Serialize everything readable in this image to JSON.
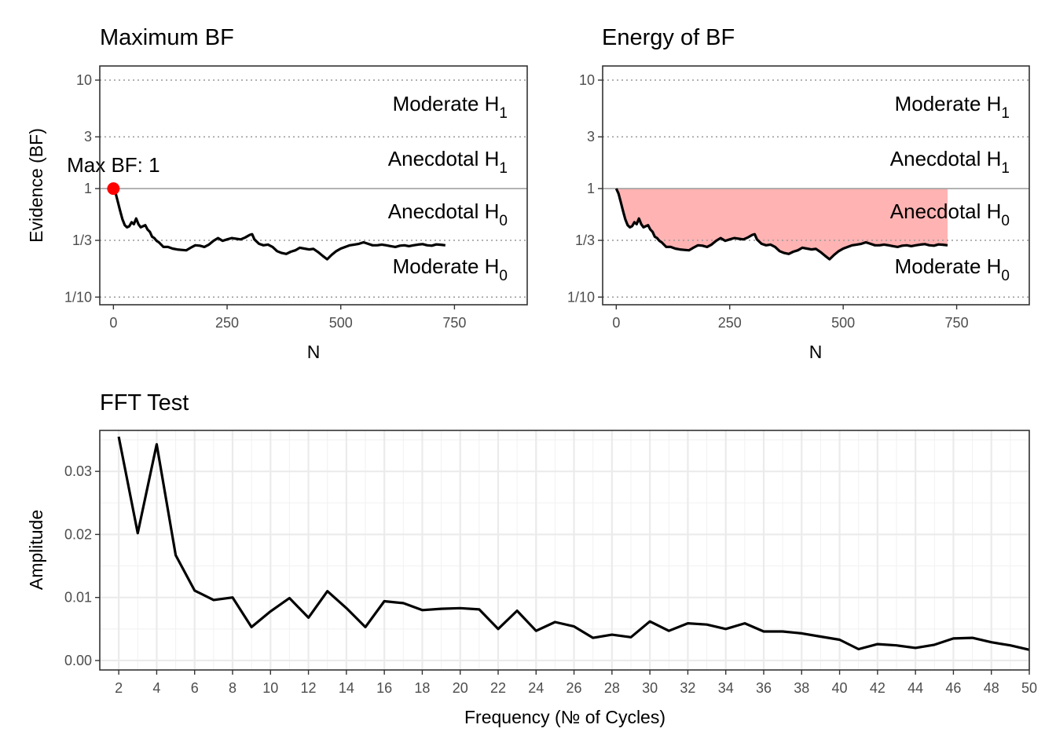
{
  "colors": {
    "line": "#000000",
    "max_point": "#ff0000",
    "energy_fill": "#ffb3b3",
    "reference_line": "#999999",
    "frame": "#333333"
  },
  "chart_data": [
    {
      "type": "line",
      "title": "Maximum BF",
      "xlabel": "N",
      "ylabel": "Evidence (BF)",
      "y_scale": "log",
      "xlim": [
        -30,
        910
      ],
      "ylim": [
        0.085,
        13.5
      ],
      "x_ticks": [
        0,
        250,
        500,
        750
      ],
      "x_tick_labels": [
        "0",
        "250",
        "500",
        "750"
      ],
      "y_ticks": [
        0.1,
        0.3333,
        1,
        3,
        10
      ],
      "y_tick_labels": [
        "1/10",
        "1/3",
        "1",
        "3",
        "10"
      ],
      "grid": "dotted at 1/10, 1/3, 3, 10; solid reference at 1",
      "evidence_zones": [
        "Moderate H₁",
        "Anecdotal H₁",
        "Anecdotal H₀",
        "Moderate H₀"
      ],
      "annotation": {
        "label": "Max BF: 1",
        "x": 0,
        "y": 1
      },
      "series": [
        {
          "x": [
            0,
            5,
            10,
            15,
            20,
            25,
            30,
            35,
            40,
            45,
            50,
            55,
            60,
            65,
            70,
            75,
            80,
            85,
            90,
            95,
            100,
            110,
            120,
            130,
            140,
            150,
            160,
            170,
            180,
            190,
            200,
            210,
            220,
            230,
            240,
            250,
            260,
            270,
            280,
            290,
            300,
            305,
            310,
            320,
            330,
            340,
            350,
            360,
            370,
            380,
            390,
            400,
            410,
            420,
            430,
            440,
            450,
            460,
            470,
            480,
            490,
            500,
            510,
            520,
            530,
            540,
            550,
            560,
            570,
            580,
            590,
            600,
            610,
            620,
            630,
            640,
            650,
            660,
            670,
            680,
            690,
            700,
            710,
            720,
            730
          ],
          "y": [
            1.0,
            0.9,
            0.75,
            0.62,
            0.52,
            0.46,
            0.44,
            0.45,
            0.49,
            0.47,
            0.53,
            0.47,
            0.44,
            0.45,
            0.46,
            0.42,
            0.4,
            0.36,
            0.35,
            0.33,
            0.32,
            0.29,
            0.29,
            0.28,
            0.275,
            0.272,
            0.27,
            0.285,
            0.3,
            0.298,
            0.29,
            0.305,
            0.33,
            0.35,
            0.33,
            0.34,
            0.35,
            0.345,
            0.34,
            0.355,
            0.375,
            0.38,
            0.34,
            0.31,
            0.3,
            0.305,
            0.29,
            0.265,
            0.255,
            0.25,
            0.262,
            0.27,
            0.285,
            0.28,
            0.275,
            0.278,
            0.26,
            0.24,
            0.223,
            0.245,
            0.265,
            0.28,
            0.29,
            0.3,
            0.305,
            0.31,
            0.32,
            0.31,
            0.3,
            0.3,
            0.305,
            0.3,
            0.295,
            0.29,
            0.298,
            0.3,
            0.295,
            0.3,
            0.305,
            0.308,
            0.3,
            0.298,
            0.306,
            0.304,
            0.3
          ]
        }
      ]
    },
    {
      "type": "area",
      "title": "Energy of BF",
      "xlabel": "N",
      "ylabel": "",
      "y_scale": "log",
      "xlim": [
        -30,
        910
      ],
      "ylim": [
        0.085,
        13.5
      ],
      "x_ticks": [
        0,
        250,
        500,
        750
      ],
      "x_tick_labels": [
        "0",
        "250",
        "500",
        "750"
      ],
      "y_ticks": [
        0.1,
        0.3333,
        1,
        3,
        10
      ],
      "y_tick_labels": [
        "1/10",
        "1/3",
        "1",
        "3",
        "10"
      ],
      "grid": "dotted at 1/10, 1/3, 3, 10; solid reference at 1",
      "shaded_region": "between BF = 1 and the BF curve",
      "evidence_zones": [
        "Moderate H₁",
        "Anecdotal H₁",
        "Anecdotal H₀",
        "Moderate H₀"
      ],
      "series": [
        {
          "x": [
            0,
            5,
            10,
            15,
            20,
            25,
            30,
            35,
            40,
            45,
            50,
            55,
            60,
            65,
            70,
            75,
            80,
            85,
            90,
            95,
            100,
            110,
            120,
            130,
            140,
            150,
            160,
            170,
            180,
            190,
            200,
            210,
            220,
            230,
            240,
            250,
            260,
            270,
            280,
            290,
            300,
            305,
            310,
            320,
            330,
            340,
            350,
            360,
            370,
            380,
            390,
            400,
            410,
            420,
            430,
            440,
            450,
            460,
            470,
            480,
            490,
            500,
            510,
            520,
            530,
            540,
            550,
            560,
            570,
            580,
            590,
            600,
            610,
            620,
            630,
            640,
            650,
            660,
            670,
            680,
            690,
            700,
            710,
            720,
            730
          ],
          "y": [
            1.0,
            0.9,
            0.75,
            0.62,
            0.52,
            0.46,
            0.44,
            0.45,
            0.49,
            0.47,
            0.53,
            0.47,
            0.44,
            0.45,
            0.46,
            0.42,
            0.4,
            0.36,
            0.35,
            0.33,
            0.32,
            0.29,
            0.29,
            0.28,
            0.275,
            0.272,
            0.27,
            0.285,
            0.3,
            0.298,
            0.29,
            0.305,
            0.33,
            0.35,
            0.33,
            0.34,
            0.35,
            0.345,
            0.34,
            0.355,
            0.375,
            0.38,
            0.34,
            0.31,
            0.3,
            0.305,
            0.29,
            0.265,
            0.255,
            0.25,
            0.262,
            0.27,
            0.285,
            0.28,
            0.275,
            0.278,
            0.26,
            0.24,
            0.223,
            0.245,
            0.265,
            0.28,
            0.29,
            0.3,
            0.305,
            0.31,
            0.32,
            0.31,
            0.3,
            0.3,
            0.305,
            0.3,
            0.295,
            0.29,
            0.298,
            0.3,
            0.295,
            0.3,
            0.305,
            0.308,
            0.3,
            0.298,
            0.306,
            0.304,
            0.3
          ]
        }
      ]
    },
    {
      "type": "line",
      "title": "FFT Test",
      "xlabel": "Frequency (№ of Cycles)",
      "ylabel": "Amplitude",
      "xlim": [
        1,
        50
      ],
      "ylim": [
        -0.0015,
        0.0365
      ],
      "x_ticks": [
        2,
        4,
        6,
        8,
        10,
        12,
        14,
        16,
        18,
        20,
        22,
        24,
        26,
        28,
        30,
        32,
        34,
        36,
        38,
        40,
        42,
        44,
        46,
        48,
        50
      ],
      "x_tick_labels": [
        "2",
        "4",
        "6",
        "8",
        "10",
        "12",
        "14",
        "16",
        "18",
        "20",
        "22",
        "24",
        "26",
        "28",
        "30",
        "32",
        "34",
        "36",
        "38",
        "40",
        "42",
        "44",
        "46",
        "48",
        "50"
      ],
      "y_ticks": [
        0,
        0.01,
        0.02,
        0.03
      ],
      "y_tick_labels": [
        "0.00",
        "0.01",
        "0.02",
        "0.03"
      ],
      "grid": true,
      "series": [
        {
          "x": [
            2,
            3,
            4,
            5,
            6,
            7,
            8,
            9,
            10,
            11,
            12,
            13,
            14,
            15,
            16,
            17,
            18,
            19,
            20,
            21,
            22,
            23,
            24,
            25,
            26,
            27,
            28,
            29,
            30,
            31,
            32,
            33,
            34,
            35,
            36,
            37,
            38,
            39,
            40,
            41,
            42,
            43,
            44,
            45,
            46,
            47,
            48,
            49,
            50
          ],
          "y": [
            0.0355,
            0.0202,
            0.0343,
            0.0167,
            0.0111,
            0.0096,
            0.01,
            0.0053,
            0.0078,
            0.0099,
            0.0068,
            0.011,
            0.0083,
            0.0053,
            0.0094,
            0.0091,
            0.008,
            0.0082,
            0.0083,
            0.0081,
            0.005,
            0.0079,
            0.0047,
            0.0061,
            0.0054,
            0.0036,
            0.0041,
            0.0037,
            0.0062,
            0.0047,
            0.0059,
            0.0057,
            0.005,
            0.0059,
            0.0046,
            0.0046,
            0.0043,
            0.0038,
            0.0033,
            0.0018,
            0.0026,
            0.0024,
            0.002,
            0.0025,
            0.0035,
            0.0036,
            0.0029,
            0.0024,
            0.0017
          ]
        }
      ]
    }
  ]
}
